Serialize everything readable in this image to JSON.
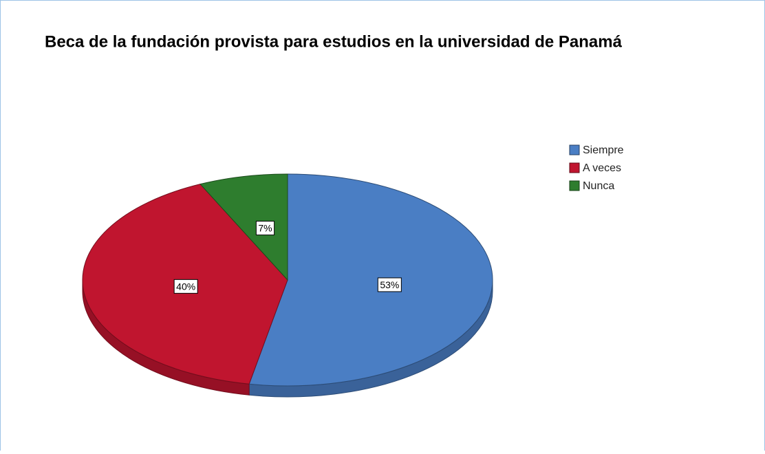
{
  "chart_data": {
    "type": "pie",
    "title": "Beca de la fundación provista para estudios en la universidad de Panamá",
    "categories": [
      "Siempre",
      "A veces",
      "Nunca"
    ],
    "values": [
      53,
      40,
      7
    ],
    "value_labels": [
      "53%",
      "40%",
      "7%"
    ],
    "colors": [
      "#4a7ec4",
      "#c0152f",
      "#2e7d2e"
    ],
    "legend": "right"
  }
}
